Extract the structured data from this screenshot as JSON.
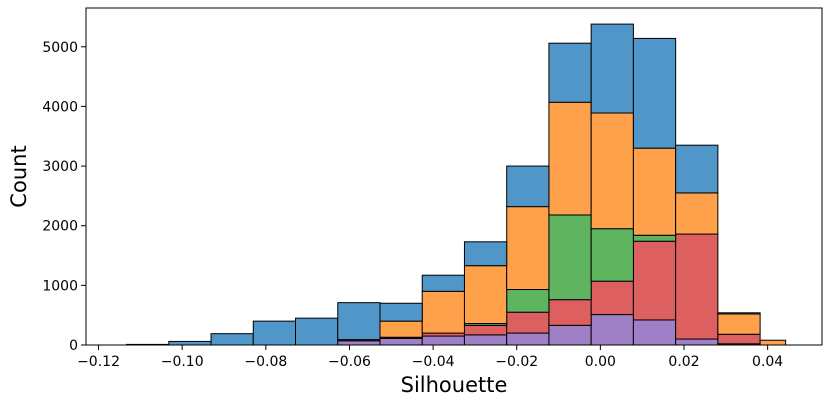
{
  "chart_data": {
    "type": "bar",
    "stacked": true,
    "title": "",
    "xlabel": "Silhouette",
    "ylabel": "Count",
    "xlim": [
      -0.123,
      0.053
    ],
    "ylim": [
      0,
      5650
    ],
    "xticks": [
      -0.12,
      -0.1,
      -0.08,
      -0.06,
      -0.04,
      -0.02,
      0.0,
      0.02,
      0.04
    ],
    "xtick_labels": [
      "−0.12",
      "−0.10",
      "−0.08",
      "−0.06",
      "−0.04",
      "−0.02",
      "0.00",
      "0.02",
      "0.04"
    ],
    "yticks": [
      0,
      1000,
      2000,
      3000,
      4000,
      5000
    ],
    "ytick_labels": [
      "0",
      "1000",
      "2000",
      "3000",
      "4000",
      "5000"
    ],
    "bin_edges": [
      -0.1133,
      -0.1032,
      -0.0931,
      -0.083,
      -0.0729,
      -0.0628,
      -0.0527,
      -0.0426,
      -0.0325,
      -0.0224,
      -0.0123,
      -0.0022,
      0.0079,
      0.018,
      0.0281,
      0.0382,
      0.0443
    ],
    "series": [
      {
        "name": "purple",
        "color": "#9f80c6",
        "values": [
          0,
          0,
          0,
          0,
          0,
          70,
          110,
          150,
          170,
          200,
          330,
          510,
          420,
          100,
          20,
          0
        ]
      },
      {
        "name": "red",
        "color": "#dd5f5f",
        "values": [
          0,
          0,
          0,
          0,
          0,
          20,
          20,
          50,
          160,
          350,
          430,
          560,
          1320,
          1760,
          160,
          0
        ]
      },
      {
        "name": "green",
        "color": "#5fb55f",
        "values": [
          0,
          0,
          0,
          0,
          0,
          0,
          0,
          0,
          30,
          380,
          1420,
          880,
          100,
          0,
          0,
          0
        ]
      },
      {
        "name": "orange",
        "color": "#ffa04a",
        "values": [
          0,
          0,
          0,
          0,
          0,
          0,
          270,
          700,
          970,
          1390,
          1890,
          1940,
          1460,
          690,
          340,
          80
        ]
      },
      {
        "name": "blue",
        "color": "#5196c8",
        "values": [
          10,
          60,
          190,
          400,
          450,
          620,
          300,
          270,
          400,
          680,
          990,
          1490,
          1840,
          800,
          20,
          0
        ]
      }
    ]
  }
}
